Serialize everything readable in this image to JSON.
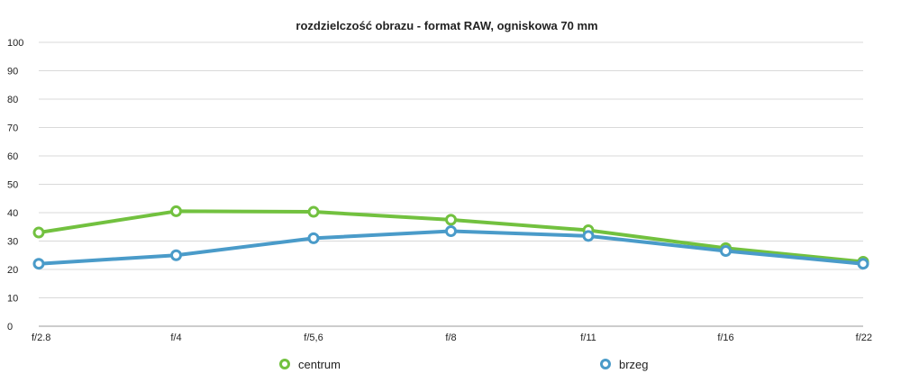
{
  "chart_data": {
    "type": "line",
    "title": "rozdzielczość obrazu - format RAW, ogniskowa 70 mm",
    "xlabel": "",
    "ylabel": "",
    "categories": [
      "f/2.8",
      "f/4",
      "f/5,6",
      "f/8",
      "f/11",
      "f/16",
      "f/22"
    ],
    "ylim": [
      0,
      100
    ],
    "yticks": [
      "0",
      "10",
      "20",
      "30",
      "40",
      "50",
      "60",
      "70",
      "80",
      "90",
      "100"
    ],
    "grid": true,
    "legend_position": "bottom",
    "series": [
      {
        "name": "centrum",
        "color": "#72c13f",
        "values": [
          33,
          40.5,
          40.3,
          37.5,
          33.8,
          27.5,
          22.7
        ]
      },
      {
        "name": "brzeg",
        "color": "#4a9bc9",
        "values": [
          22,
          25,
          31,
          33.5,
          31.8,
          26.5,
          22
        ]
      }
    ]
  }
}
